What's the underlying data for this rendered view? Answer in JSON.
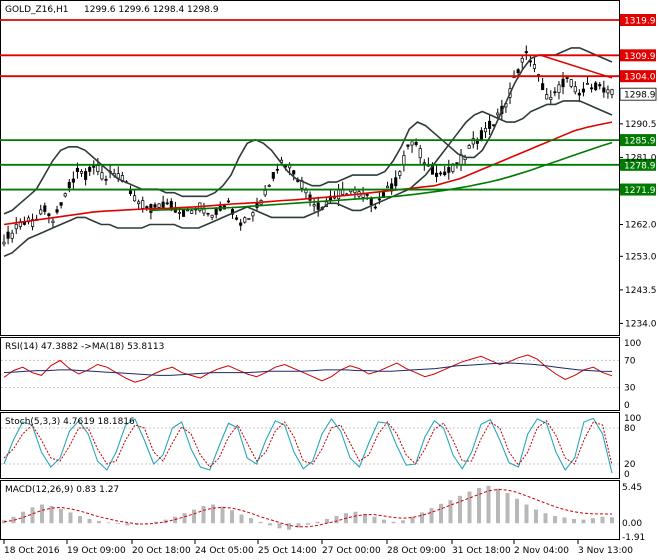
{
  "header": {
    "symbol": "GOLD_Z16,H1",
    "ohlc": "1299.6 1299.6 1298.4 1298.9"
  },
  "colors": {
    "candle": "#000000",
    "red_line": "#e00000",
    "green_line": "#007a00",
    "bb": "#2f3b3b",
    "ma_fast": "#3d5c4a",
    "price_tag_bg": "#e00000",
    "green_tag_bg": "#007a00",
    "current_tag_bg": "#ffffff",
    "rsi": "#d00000",
    "rsi_ma": "#1a2a6a",
    "stoch_main": "#2aa7b7",
    "stoch_signal": "#c00000",
    "macd_hist": "#b8b8b8",
    "macd_signal": "#d00000"
  },
  "chart_data": [
    {
      "type": "line",
      "panel": "price",
      "ylim": [
        1231,
        1325
      ],
      "ticks": [
        1234.0,
        1243.5,
        1253.0,
        1262.0,
        1271.9,
        1281.0,
        1285.9,
        1290.5,
        1298.9,
        1304.0,
        1309.9,
        1319.9
      ],
      "tick_labels": [
        "1234.0",
        "1243.5",
        "1253.0",
        "1262.0",
        "1271.9",
        "1281.0",
        "1285.9",
        "1290.5",
        "1298.9",
        "1304.0",
        "1309.9",
        "1319.9"
      ],
      "horizontal_levels": [
        {
          "value": 1319.9,
          "label": "1319.9",
          "color": "red"
        },
        {
          "value": 1309.9,
          "label": "1309.9",
          "color": "red"
        },
        {
          "value": 1304.0,
          "label": "1304.0",
          "color": "red"
        },
        {
          "value": 1285.9,
          "label": "1285.9",
          "color": "green"
        },
        {
          "value": 1278.9,
          "label": "1278.9",
          "color": "green"
        },
        {
          "value": 1271.9,
          "label": "1271.9",
          "color": "green"
        }
      ],
      "current_price": {
        "value": 1298.9,
        "label": "1298.9"
      },
      "price_path": [
        1258,
        1259,
        1261,
        1263,
        1262,
        1264,
        1266,
        1263,
        1265,
        1270,
        1274,
        1278,
        1276,
        1279,
        1277,
        1275,
        1278,
        1276,
        1273,
        1270,
        1268,
        1267,
        1266,
        1267,
        1268,
        1267,
        1266,
        1265,
        1266,
        1267,
        1266,
        1265,
        1267,
        1268,
        1266,
        1263,
        1264,
        1266,
        1269,
        1273,
        1277,
        1280,
        1279,
        1277,
        1274,
        1271,
        1268,
        1267,
        1269,
        1270,
        1271,
        1272,
        1271,
        1270,
        1269,
        1268,
        1270,
        1272,
        1274,
        1279,
        1286,
        1284,
        1281,
        1278,
        1277,
        1276,
        1277,
        1279,
        1281,
        1284,
        1286,
        1288,
        1290,
        1292,
        1295,
        1300,
        1306,
        1310,
        1309,
        1304,
        1300,
        1297,
        1300,
        1303,
        1302,
        1298,
        1300,
        1302,
        1301,
        1299,
        1298.9
      ],
      "bb_upper": [
        1265,
        1266,
        1268,
        1270,
        1272,
        1276,
        1280,
        1283,
        1284,
        1284,
        1283,
        1281,
        1279,
        1277,
        1275,
        1274,
        1273,
        1272,
        1272,
        1272,
        1271,
        1271,
        1270,
        1270,
        1270,
        1270,
        1271,
        1273,
        1276,
        1281,
        1285,
        1286,
        1285,
        1283,
        1280,
        1277,
        1275,
        1274,
        1273,
        1273,
        1274,
        1274,
        1275,
        1276,
        1276,
        1276,
        1276,
        1277,
        1280,
        1284,
        1289,
        1291,
        1290,
        1288,
        1286,
        1284,
        1282,
        1281,
        1281,
        1283,
        1287,
        1292,
        1297,
        1302,
        1306,
        1309,
        1310,
        1310,
        1310,
        1311,
        1312,
        1312,
        1311,
        1310,
        1309,
        1308
      ],
      "bb_lower": [
        1253,
        1254,
        1256,
        1258,
        1259,
        1260,
        1261,
        1262,
        1263,
        1264,
        1264,
        1263,
        1262,
        1262,
        1261,
        1261,
        1261,
        1261,
        1262,
        1262,
        1262,
        1262,
        1261,
        1261,
        1261,
        1262,
        1263,
        1264,
        1265,
        1266,
        1267,
        1266,
        1265,
        1264,
        1264,
        1264,
        1264,
        1264,
        1265,
        1266,
        1268,
        1268,
        1267,
        1266,
        1266,
        1267,
        1268,
        1269,
        1270,
        1271,
        1272,
        1274,
        1276,
        1279,
        1282,
        1285,
        1288,
        1291,
        1293,
        1294,
        1293,
        1292,
        1291,
        1291,
        1292,
        1294,
        1295,
        1296,
        1296,
        1297,
        1297,
        1297,
        1296,
        1295,
        1294,
        1293
      ],
      "ma_red": [
        1262,
        1262.5,
        1263,
        1263.5,
        1264,
        1264.5,
        1265,
        1265.5,
        1265.8,
        1266,
        1266.2,
        1266.4,
        1266.5,
        1266.6,
        1266.8,
        1267,
        1267.2,
        1267.5,
        1267.8,
        1268,
        1268.2,
        1268.5,
        1268.8,
        1269,
        1269.3,
        1269.6,
        1269.9,
        1270.2,
        1270.6,
        1271,
        1271.4,
        1271.8,
        1272.2,
        1272.6,
        1273,
        1274,
        1275,
        1276.5,
        1278,
        1279.5,
        1281,
        1282.5,
        1284,
        1285.5,
        1287,
        1288.5,
        1289.5,
        1290.3,
        1291
      ],
      "ma_green": [
        1266,
        1266.1,
        1266.2,
        1266.3,
        1266.4,
        1266.5,
        1266.6,
        1266.7,
        1266.8,
        1267,
        1267.2,
        1267.4,
        1267.6,
        1267.8,
        1268,
        1268.2,
        1268.4,
        1268.6,
        1268.8,
        1269,
        1269.2,
        1269.4,
        1269.6,
        1269.8,
        1270,
        1270.3,
        1270.6,
        1271,
        1271.4,
        1271.8,
        1272.3,
        1272.8,
        1273.4,
        1274,
        1274.7,
        1275.5,
        1276.4,
        1277.3,
        1278.3,
        1279.3,
        1280.3,
        1281.3,
        1282.3,
        1283.3,
        1284.3,
        1285.2
      ]
    },
    {
      "type": "line",
      "panel": "rsi",
      "label": "RSI(14) 47.3882  ->MA(18) 53.8113",
      "ylim": [
        0,
        100
      ],
      "ticks": [
        100,
        70,
        30,
        0
      ],
      "tick_labels": [
        "100",
        "70",
        "30",
        "0"
      ],
      "rsi": [
        45,
        55,
        60,
        52,
        48,
        62,
        70,
        58,
        50,
        56,
        64,
        60,
        52,
        44,
        38,
        42,
        50,
        56,
        60,
        52,
        48,
        44,
        52,
        58,
        62,
        56,
        50,
        46,
        52,
        60,
        64,
        58,
        52,
        46,
        40,
        46,
        56,
        62,
        58,
        50,
        54,
        60,
        66,
        58,
        52,
        46,
        50,
        56,
        62,
        68,
        72,
        76,
        70,
        64,
        68,
        74,
        78,
        72,
        60,
        50,
        42,
        48,
        56,
        60,
        52,
        47.4
      ],
      "rsi_ma": [
        52,
        53,
        54,
        55,
        55,
        56,
        56,
        55,
        54,
        53,
        52,
        51,
        50,
        49,
        48,
        48,
        49,
        50,
        51,
        52,
        52,
        52,
        52,
        53,
        54,
        54,
        54,
        54,
        55,
        56,
        56,
        56,
        55,
        55,
        54,
        54,
        55,
        56,
        57,
        58,
        60,
        62,
        63,
        64,
        65,
        66,
        66,
        65,
        64,
        62,
        60,
        58,
        56,
        55,
        54,
        53.8
      ]
    },
    {
      "type": "line",
      "panel": "stochastic",
      "label": "Stoch(5,3,3) 4.7619 18.1816",
      "ylim": [
        0,
        100
      ],
      "ticks": [
        100,
        80,
        20,
        0
      ],
      "tick_labels": [
        "100",
        "80",
        "20",
        "0"
      ],
      "main": [
        20,
        60,
        90,
        85,
        40,
        15,
        30,
        75,
        92,
        70,
        25,
        10,
        40,
        85,
        95,
        60,
        20,
        35,
        80,
        90,
        45,
        15,
        10,
        50,
        88,
        80,
        30,
        20,
        60,
        92,
        85,
        40,
        12,
        25,
        70,
        95,
        75,
        30,
        15,
        55,
        90,
        88,
        50,
        18,
        20,
        65,
        92,
        80,
        35,
        12,
        40,
        86,
        94,
        60,
        22,
        15,
        70,
        95,
        88,
        40,
        10,
        30,
        90,
        96,
        70,
        4.8
      ],
      "signal": [
        30,
        45,
        70,
        85,
        60,
        30,
        25,
        50,
        80,
        80,
        45,
        20,
        25,
        60,
        85,
        80,
        40,
        25,
        55,
        82,
        70,
        35,
        15,
        30,
        65,
        85,
        55,
        25,
        40,
        75,
        90,
        65,
        25,
        20,
        45,
        80,
        85,
        55,
        25,
        35,
        70,
        90,
        70,
        35,
        20,
        45,
        78,
        88,
        60,
        25,
        25,
        62,
        90,
        80,
        40,
        18,
        40,
        80,
        92,
        68,
        30,
        20,
        60,
        90,
        85,
        18.2
      ]
    },
    {
      "type": "bar",
      "panel": "macd",
      "label": "MACD(12,26,9) 0.83 1.27",
      "ylim": [
        -1.91,
        5.45
      ],
      "ticks": [
        5.45,
        0.0,
        -1.91
      ],
      "tick_labels": [
        "5.45",
        "0.00",
        "-1.91"
      ],
      "histogram": [
        0.4,
        0.9,
        1.6,
        2.2,
        2.6,
        2.4,
        2.0,
        1.5,
        1.0,
        0.6,
        0.3,
        0.1,
        -0.1,
        -0.3,
        -0.2,
        0.0,
        0.2,
        0.5,
        0.9,
        1.4,
        1.9,
        2.4,
        2.6,
        2.3,
        1.8,
        1.2,
        0.7,
        0.2,
        -0.3,
        -0.7,
        -0.9,
        -0.6,
        -0.2,
        0.2,
        0.6,
        1.0,
        1.4,
        1.6,
        1.3,
        0.9,
        0.5,
        0.2,
        0.4,
        0.9,
        1.5,
        2.1,
        2.7,
        3.2,
        3.8,
        4.4,
        4.9,
        5.2,
        4.8,
        4.2,
        3.4,
        2.6,
        1.9,
        1.4,
        1.0,
        0.8,
        0.6,
        0.5,
        0.7,
        0.9,
        0.83
      ],
      "signal": [
        0.2,
        0.4,
        0.8,
        1.3,
        1.8,
        2.1,
        2.2,
        2.0,
        1.7,
        1.3,
        0.9,
        0.6,
        0.3,
        0.1,
        -0.1,
        -0.1,
        0.0,
        0.2,
        0.5,
        0.9,
        1.3,
        1.8,
        2.1,
        2.2,
        2.1,
        1.8,
        1.4,
        0.9,
        0.5,
        0.1,
        -0.3,
        -0.5,
        -0.5,
        -0.3,
        0.0,
        0.3,
        0.7,
        1.0,
        1.2,
        1.2,
        1.0,
        0.8,
        0.7,
        0.8,
        1.1,
        1.5,
        2.0,
        2.5,
        3.0,
        3.5,
        4.0,
        4.5,
        4.7,
        4.6,
        4.3,
        3.8,
        3.3,
        2.8,
        2.3,
        1.9,
        1.6,
        1.4,
        1.3,
        1.3,
        1.27
      ]
    }
  ],
  "time_axis": [
    "18 Oct 2016",
    "19 Oct 09:00",
    "20 Oct 18:00",
    "24 Oct 05:00",
    "25 Oct 14:00",
    "27 Oct 00:00",
    "28 Oct 09:00",
    "31 Oct 18:00",
    "2 Nov 04:00",
    "3 Nov 13:00"
  ]
}
